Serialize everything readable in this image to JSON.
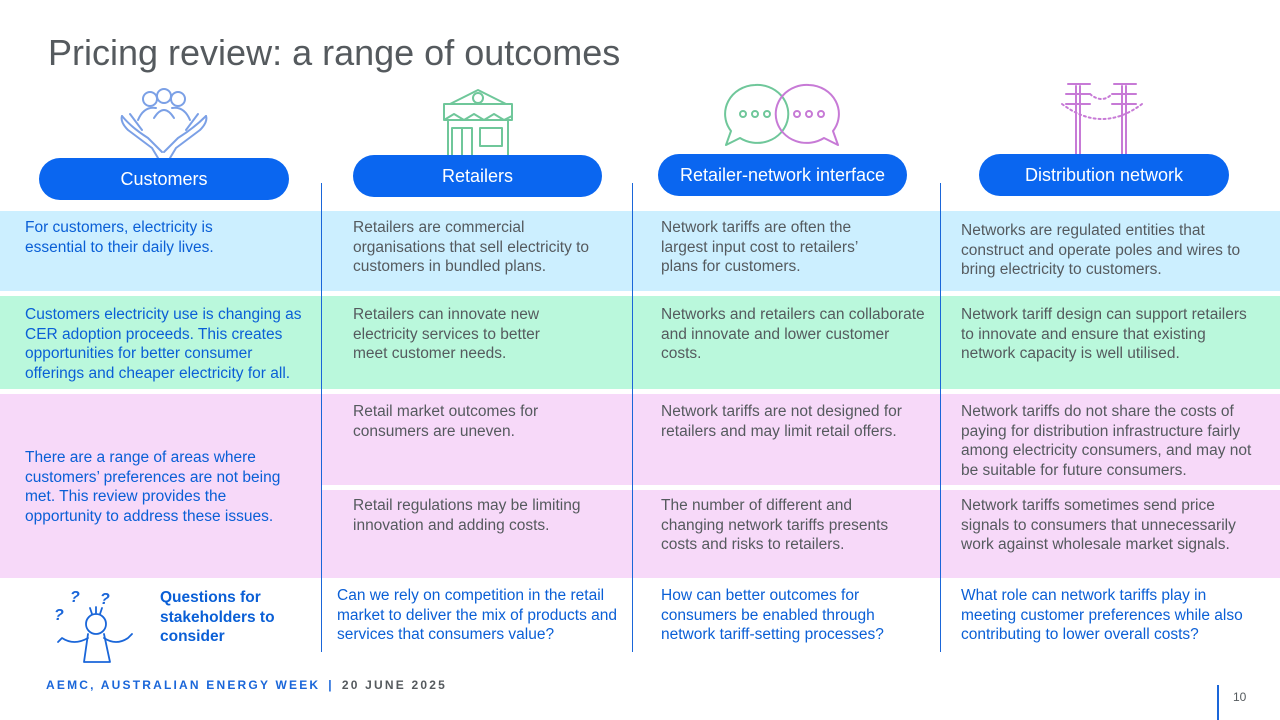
{
  "title": "Pricing review: a range of outcomes",
  "columns": [
    {
      "header": "Customers",
      "icon": "hands-people-icon"
    },
    {
      "header": "Retailers",
      "icon": "shopfront-icon"
    },
    {
      "header": "Retailer-network interface",
      "icon": "speech-bubbles-icon"
    },
    {
      "header": "Distribution network",
      "icon": "power-poles-icon"
    }
  ],
  "rows": {
    "blue": [
      "For customers, electricity is essential to their daily lives.",
      "Retailers are commercial organisations that sell electricity to customers in bundled plans.",
      "Network tariffs are often the largest input cost to retailers’ plans for customers.",
      "Networks are regulated entities that construct and operate poles and wires to bring electricity to customers."
    ],
    "green": [
      "Customers electricity use is changing as CER adoption proceeds. This creates opportunities for better consumer offerings and cheaper electricity for all.",
      "Retailers can innovate new electricity services to better meet customer needs.",
      "Networks and retailers can collaborate and innovate and lower customer costs.",
      "Network tariff design can support retailers to innovate and ensure that existing network capacity is well utilised."
    ],
    "pink_left": "There are a range of areas where customers’ preferences are not being met. This review provides the opportunity to address these issues.",
    "pink1": [
      "Retail market outcomes for consumers are uneven.",
      "Network tariffs are not designed for retailers and may limit retail offers.",
      "Network tariffs do not share the costs of paying for distribution infrastructure fairly among electricity consumers, and may not be suitable for future consumers."
    ],
    "pink2": [
      "Retail regulations may be limiting innovation and adding costs.",
      "The number of different and changing network tariffs presents costs and risks to retailers.",
      "Network tariffs sometimes send price signals to consumers that unnecessarily work against wholesale market signals."
    ]
  },
  "questions": {
    "label": "Questions for stakeholders to consider",
    "icon": "confused-person-icon",
    "items": [
      "Can we rely on competition in the retail market to deliver the mix of products and services that consumers value?",
      "How can better outcomes for consumers be enabled through network tariff-setting processes?",
      "What role can network tariffs play in meeting customer preferences while also contributing to lower overall costs?"
    ]
  },
  "footer": {
    "org": "AEMC, AUSTRALIAN ENERGY WEEK",
    "separator": "|",
    "date": "20 JUNE 2025"
  },
  "page_number": "10",
  "colors": {
    "accent_blue": "#0a66f0",
    "band_blue": "#ccefff",
    "band_green": "#baf8dc",
    "band_pink": "#f7d9f9"
  }
}
